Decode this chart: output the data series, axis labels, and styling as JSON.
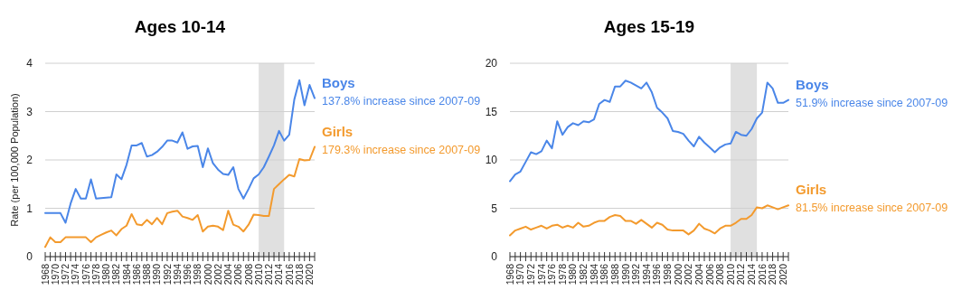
{
  "chart_data": [
    {
      "type": "line",
      "title": "Ages 10-14",
      "ylabel": "Rate (per 100,000 Population)",
      "x": [
        1968,
        1969,
        1970,
        1971,
        1972,
        1973,
        1974,
        1975,
        1976,
        1977,
        1978,
        1979,
        1980,
        1981,
        1982,
        1983,
        1984,
        1985,
        1986,
        1987,
        1988,
        1989,
        1990,
        1991,
        1992,
        1993,
        1994,
        1995,
        1996,
        1997,
        1998,
        1999,
        2000,
        2001,
        2002,
        2003,
        2004,
        2005,
        2006,
        2007,
        2008,
        2009,
        2010,
        2011,
        2012,
        2013,
        2014,
        2015,
        2016,
        2017,
        2018,
        2019,
        2020,
        2021
      ],
      "series": [
        {
          "name": "Boys",
          "color": "#4a86e8",
          "values": [
            0.9,
            0.9,
            0.9,
            0.9,
            0.7,
            1.1,
            1.4,
            1.2,
            1.2,
            1.6,
            1.2,
            1.21,
            1.22,
            1.23,
            1.7,
            1.6,
            1.9,
            2.3,
            2.3,
            2.35,
            2.07,
            2.1,
            2.17,
            2.27,
            2.4,
            2.4,
            2.36,
            2.57,
            2.23,
            2.28,
            2.29,
            1.85,
            2.24,
            1.93,
            1.8,
            1.71,
            1.69,
            1.85,
            1.4,
            1.2,
            1.4,
            1.62,
            1.7,
            1.85,
            2.07,
            2.3,
            2.6,
            2.4,
            2.52,
            3.25,
            3.65,
            3.13,
            3.55,
            3.28
          ]
        },
        {
          "name": "Girls",
          "color": "#f39a2d",
          "values": [
            0.2,
            0.4,
            0.3,
            0.3,
            0.4,
            0.4,
            0.4,
            0.4,
            0.4,
            0.3,
            0.4,
            0.45,
            0.5,
            0.54,
            0.44,
            0.57,
            0.64,
            0.88,
            0.67,
            0.65,
            0.76,
            0.67,
            0.8,
            0.67,
            0.9,
            0.93,
            0.95,
            0.83,
            0.8,
            0.76,
            0.86,
            0.52,
            0.62,
            0.64,
            0.62,
            0.55,
            0.95,
            0.66,
            0.62,
            0.52,
            0.66,
            0.87,
            0.86,
            0.84,
            0.84,
            1.4,
            1.5,
            1.6,
            1.69,
            1.66,
            2.02,
            1.99,
            2.0,
            2.27
          ]
        }
      ],
      "annotations": [
        "137.8% increase since 2007-09",
        "179.3% increase since 2007-09"
      ],
      "xlim": [
        1968,
        2021
      ],
      "xticks": [
        1968,
        {
          "value": 1969,
          "label": null
        },
        1970,
        {
          "value": 1971,
          "label": null
        },
        1972,
        {
          "value": 1973,
          "label": null
        },
        1974,
        {
          "value": 1975,
          "label": null
        },
        1976,
        {
          "value": 1977,
          "label": null
        },
        1978,
        {
          "value": 1979,
          "label": null
        },
        1980,
        {
          "value": 1981,
          "label": null
        },
        1982,
        {
          "value": 1983,
          "label": null
        },
        1984,
        {
          "value": 1985,
          "label": null
        },
        1986,
        {
          "value": 1987,
          "label": null
        },
        1988,
        {
          "value": 1989,
          "label": null
        },
        1990,
        {
          "value": 1991,
          "label": null
        },
        1992,
        {
          "value": 1993,
          "label": null
        },
        1994,
        {
          "value": 1995,
          "label": null
        },
        1996,
        {
          "value": 1997,
          "label": null
        },
        1998,
        {
          "value": 1999,
          "label": null
        },
        2000,
        {
          "value": 2001,
          "label": null
        },
        2002,
        {
          "value": 2003,
          "label": null
        },
        2004,
        {
          "value": 2005,
          "label": null
        },
        2006,
        {
          "value": 2007,
          "label": null
        },
        2008,
        {
          "value": 2009,
          "label": null
        },
        2010,
        {
          "value": 2011,
          "label": null
        },
        2012,
        {
          "value": 2013,
          "label": null
        },
        2014,
        {
          "value": 2015,
          "label": null
        },
        2016,
        {
          "value": 2017,
          "label": null
        },
        2018,
        {
          "value": 2019,
          "label": null
        },
        2020,
        {
          "value": 2021,
          "label": null
        }
      ],
      "ylim": [
        0,
        4
      ],
      "yticks": [
        0,
        1,
        2,
        3,
        4
      ],
      "grid": "y",
      "bands": [
        {
          "axis": "x",
          "from": 2010,
          "to": 2015,
          "color": "#e0e0e0"
        }
      ]
    },
    {
      "type": "line",
      "title": "Ages 15-19",
      "x": [
        1968,
        1969,
        1970,
        1971,
        1972,
        1973,
        1974,
        1975,
        1976,
        1977,
        1978,
        1979,
        1980,
        1981,
        1982,
        1983,
        1984,
        1985,
        1986,
        1987,
        1988,
        1989,
        1990,
        1991,
        1992,
        1993,
        1994,
        1995,
        1996,
        1997,
        1998,
        1999,
        2000,
        2001,
        2002,
        2003,
        2004,
        2005,
        2006,
        2007,
        2008,
        2009,
        2010,
        2011,
        2012,
        2013,
        2014,
        2015,
        2016,
        2017,
        2018,
        2019,
        2020,
        2021
      ],
      "series": [
        {
          "name": "Boys",
          "color": "#4a86e8",
          "values": [
            7.8,
            8.5,
            8.8,
            9.8,
            10.8,
            10.6,
            10.9,
            12.0,
            11.2,
            14.0,
            12.6,
            13.4,
            13.8,
            13.6,
            14.0,
            13.9,
            14.2,
            15.8,
            16.2,
            16.0,
            17.6,
            17.6,
            18.2,
            18.0,
            17.7,
            17.4,
            18.0,
            17.0,
            15.4,
            14.9,
            14.3,
            13.0,
            12.9,
            12.7,
            12.0,
            11.4,
            12.4,
            11.8,
            11.3,
            10.8,
            11.3,
            11.6,
            11.7,
            12.9,
            12.6,
            12.5,
            13.2,
            14.3,
            14.9,
            18.0,
            17.4,
            15.9,
            15.9,
            16.2
          ]
        },
        {
          "name": "Girls",
          "color": "#f39a2d",
          "values": [
            2.2,
            2.7,
            2.9,
            3.1,
            2.8,
            3.0,
            3.2,
            2.9,
            3.2,
            3.3,
            3.0,
            3.2,
            3.0,
            3.5,
            3.1,
            3.2,
            3.5,
            3.7,
            3.7,
            4.1,
            4.3,
            4.2,
            3.7,
            3.7,
            3.4,
            3.8,
            3.4,
            3.0,
            3.5,
            3.3,
            2.8,
            2.7,
            2.7,
            2.7,
            2.3,
            2.7,
            3.4,
            2.9,
            2.7,
            2.4,
            2.9,
            3.2,
            3.2,
            3.5,
            3.9,
            3.9,
            4.3,
            5.1,
            5.0,
            5.3,
            5.1,
            4.9,
            5.1,
            5.3
          ]
        }
      ],
      "annotations": [
        "51.9% increase since 2007-09",
        "81.5% increase since 2007-09"
      ],
      "xlim": [
        1968,
        2021
      ],
      "xticks": [
        1968,
        {
          "value": 1969,
          "label": null
        },
        1970,
        {
          "value": 1971,
          "label": null
        },
        1972,
        {
          "value": 1973,
          "label": null
        },
        1974,
        {
          "value": 1975,
          "label": null
        },
        1976,
        {
          "value": 1977,
          "label": null
        },
        1978,
        {
          "value": 1979,
          "label": null
        },
        1980,
        {
          "value": 1981,
          "label": null
        },
        1982,
        {
          "value": 1983,
          "label": null
        },
        1984,
        {
          "value": 1985,
          "label": null
        },
        1986,
        {
          "value": 1987,
          "label": null
        },
        1988,
        {
          "value": 1989,
          "label": null
        },
        1990,
        {
          "value": 1991,
          "label": null
        },
        1992,
        {
          "value": 1993,
          "label": null
        },
        1994,
        {
          "value": 1995,
          "label": null
        },
        1996,
        {
          "value": 1997,
          "label": null
        },
        1998,
        {
          "value": 1999,
          "label": null
        },
        2000,
        {
          "value": 2001,
          "label": null
        },
        2002,
        {
          "value": 2003,
          "label": null
        },
        2004,
        {
          "value": 2005,
          "label": null
        },
        2006,
        {
          "value": 2007,
          "label": null
        },
        2008,
        {
          "value": 2009,
          "label": null
        },
        2010,
        {
          "value": 2011,
          "label": null
        },
        2012,
        {
          "value": 2013,
          "label": null
        },
        2014,
        {
          "value": 2015,
          "label": null
        },
        2016,
        {
          "value": 2017,
          "label": null
        },
        2018,
        {
          "value": 2019,
          "label": null
        },
        2020,
        {
          "value": 2021,
          "label": null
        }
      ],
      "ylim": [
        0,
        20
      ],
      "yticks": [
        0,
        5,
        10,
        15,
        20
      ],
      "grid": "y",
      "bands": [
        {
          "axis": "x",
          "from": 2010,
          "to": 2015,
          "color": "#e0e0e0"
        }
      ]
    }
  ]
}
